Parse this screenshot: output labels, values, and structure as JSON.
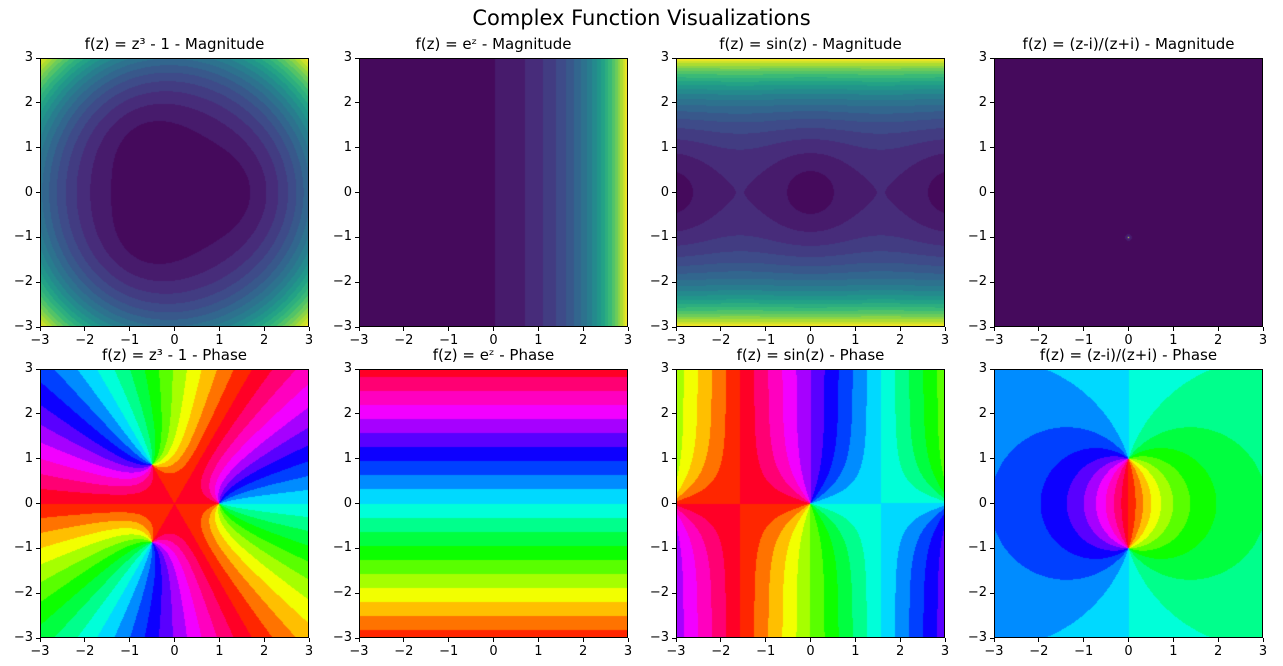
{
  "figure": {
    "suptitle": "Complex Function Visualizations"
  },
  "chart_data": [
    {
      "type": "heatmap",
      "function": "z^3 - 1",
      "mode": "magnitude",
      "colormap": "viridis",
      "title": "f(z) = z³ - 1 - Magnitude",
      "xlim": [
        -3,
        3
      ],
      "ylim": [
        -3,
        3
      ],
      "xticks": [
        "−3",
        "−2",
        "−1",
        "0",
        "1",
        "2",
        "3"
      ],
      "yticks": [
        "−3",
        "−2",
        "−1",
        "0",
        "1",
        "2",
        "3"
      ],
      "levels": 20
    },
    {
      "type": "heatmap",
      "function": "exp(z)",
      "mode": "magnitude",
      "colormap": "viridis",
      "title": "f(z) = eᶻ - Magnitude",
      "xlim": [
        -3,
        3
      ],
      "ylim": [
        -3,
        3
      ],
      "xticks": [
        "−3",
        "−2",
        "−1",
        "0",
        "1",
        "2",
        "3"
      ],
      "yticks": [
        "−3",
        "−2",
        "−1",
        "0",
        "1",
        "2",
        "3"
      ],
      "levels": 20
    },
    {
      "type": "heatmap",
      "function": "sin(z)",
      "mode": "magnitude",
      "colormap": "viridis",
      "title": "f(z) = sin(z) - Magnitude",
      "xlim": [
        -3,
        3
      ],
      "ylim": [
        -3,
        3
      ],
      "xticks": [
        "−3",
        "−2",
        "−1",
        "0",
        "1",
        "2",
        "3"
      ],
      "yticks": [
        "−3",
        "−2",
        "−1",
        "0",
        "1",
        "2",
        "3"
      ],
      "levels": 20
    },
    {
      "type": "heatmap",
      "function": "(z-i)/(z+i)",
      "mode": "magnitude",
      "colormap": "viridis",
      "title": "f(z) = (z-i)/(z+i) - Magnitude",
      "xlim": [
        -3,
        3
      ],
      "ylim": [
        -3,
        3
      ],
      "xticks": [
        "−3",
        "−2",
        "−1",
        "0",
        "1",
        "2",
        "3"
      ],
      "yticks": [
        "−3",
        "−2",
        "−1",
        "0",
        "1",
        "2",
        "3"
      ],
      "levels": 20
    },
    {
      "type": "heatmap",
      "function": "z^3 - 1",
      "mode": "phase",
      "colormap": "hsv",
      "title": "f(z) = z³ - 1 - Phase",
      "xlim": [
        -3,
        3
      ],
      "ylim": [
        -3,
        3
      ],
      "xticks": [
        "−3",
        "−2",
        "−1",
        "0",
        "1",
        "2",
        "3"
      ],
      "yticks": [
        "−3",
        "−2",
        "−1",
        "0",
        "1",
        "2",
        "3"
      ],
      "levels": 20
    },
    {
      "type": "heatmap",
      "function": "exp(z)",
      "mode": "phase",
      "colormap": "hsv",
      "title": "f(z) = eᶻ - Phase",
      "xlim": [
        -3,
        3
      ],
      "ylim": [
        -3,
        3
      ],
      "xticks": [
        "−3",
        "−2",
        "−1",
        "0",
        "1",
        "2",
        "3"
      ],
      "yticks": [
        "−3",
        "−2",
        "−1",
        "0",
        "1",
        "2",
        "3"
      ],
      "levels": 20
    },
    {
      "type": "heatmap",
      "function": "sin(z)",
      "mode": "phase",
      "colormap": "hsv",
      "title": "f(z) = sin(z) - Phase",
      "xlim": [
        -3,
        3
      ],
      "ylim": [
        -3,
        3
      ],
      "xticks": [
        "−3",
        "−2",
        "−1",
        "0",
        "1",
        "2",
        "3"
      ],
      "yticks": [
        "−3",
        "−2",
        "−1",
        "0",
        "1",
        "2",
        "3"
      ],
      "levels": 20
    },
    {
      "type": "heatmap",
      "function": "(z-i)/(z+i)",
      "mode": "phase",
      "colormap": "hsv",
      "title": "f(z) = (z-i)/(z+i) - Phase",
      "xlim": [
        -3,
        3
      ],
      "ylim": [
        -3,
        3
      ],
      "xticks": [
        "−3",
        "−2",
        "−1",
        "0",
        "1",
        "2",
        "3"
      ],
      "yticks": [
        "−3",
        "−2",
        "−1",
        "0",
        "1",
        "2",
        "3"
      ],
      "levels": 20
    }
  ]
}
